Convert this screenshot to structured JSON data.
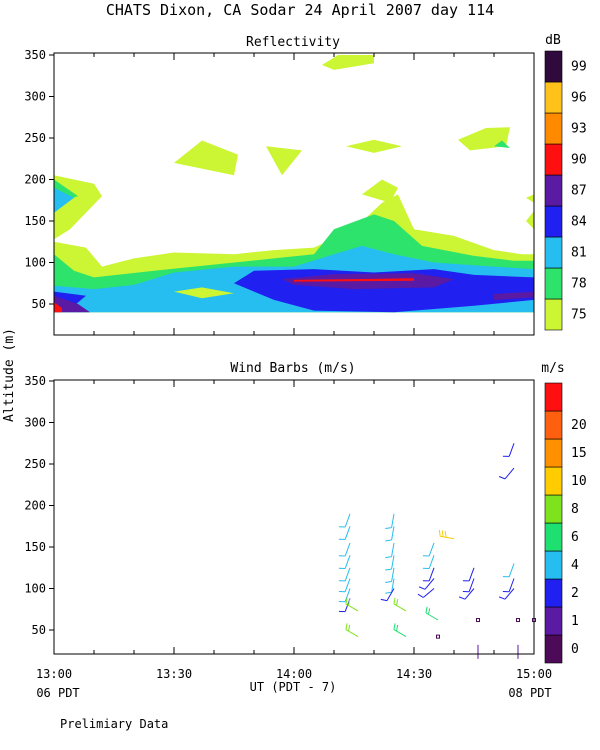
{
  "figure": {
    "title": "CHATS Dixon, CA  Sodar  24 April 2007  day 114",
    "shared_ylabel": "Altitude (m)",
    "xlabel": "UT  (PDT - 7)",
    "x_left_note": "06 PDT",
    "x_right_note": "08 PDT",
    "footer": "Prelimiary Data"
  },
  "chart_data": [
    {
      "type": "heatmap",
      "title": "Reflectivity",
      "colorbar_label": "dB",
      "xlim": [
        "13:00",
        "15:00"
      ],
      "ylim": [
        25,
        350
      ],
      "yticks": [
        50,
        100,
        150,
        200,
        250,
        300,
        350
      ],
      "xticks": [
        "13:00",
        "13:30",
        "14:00",
        "14:30",
        "15:00"
      ],
      "grid": false,
      "levels": [
        75,
        78,
        81,
        84,
        87,
        90,
        93,
        96,
        99
      ],
      "level_colors": [
        "#ccf533",
        "#2ee36b",
        "#26bdf0",
        "#2020f0",
        "#5a1aa3",
        "#ff1010",
        "#ff8a00",
        "#ffc21a",
        "#300a3d"
      ],
      "contour_regions": [
        {
          "level": 75,
          "points": [
            [
              "13:00",
              40
            ],
            [
              "13:00",
              205
            ],
            [
              "13:10",
              195
            ],
            [
              "13:12",
              180
            ],
            [
              "13:04",
              140
            ],
            [
              "13:00",
              128
            ],
            [
              "13:00",
              125
            ],
            [
              "13:08",
              118
            ],
            [
              "13:12",
              95
            ],
            [
              "13:20",
              105
            ],
            [
              "13:30",
              112
            ],
            [
              "13:45",
              110
            ],
            [
              "13:55",
              115
            ],
            [
              "14:05",
              118
            ],
            [
              "14:15",
              140
            ],
            [
              "14:22",
              172
            ],
            [
              "14:26",
              182
            ],
            [
              "14:30",
              140
            ],
            [
              "14:40",
              132
            ],
            [
              "14:50",
              115
            ],
            [
              "14:57",
              110
            ],
            [
              "15:00",
              110
            ],
            [
              "15:00",
              40
            ]
          ]
        },
        {
          "level": 75,
          "points": [
            [
              "13:57",
              205
            ],
            [
              "13:53",
              240
            ],
            [
              "14:02",
              235
            ]
          ]
        },
        {
          "level": 75,
          "points": [
            [
              "13:30",
              220
            ],
            [
              "13:37",
              247
            ],
            [
              "13:46",
              230
            ],
            [
              "13:45",
              205
            ]
          ]
        },
        {
          "level": 75,
          "points": [
            [
              "14:13",
              240
            ],
            [
              "14:20",
              248
            ],
            [
              "14:27",
              240
            ],
            [
              "14:20",
              232
            ]
          ]
        },
        {
          "level": 75,
          "points": [
            [
              "14:07",
              338
            ],
            [
              "14:11",
              350
            ],
            [
              "14:20",
              350
            ],
            [
              "14:20",
              340
            ],
            [
              "14:10",
              332
            ]
          ]
        },
        {
          "level": 75,
          "points": [
            [
              "14:41",
              248
            ],
            [
              "14:48",
              262
            ],
            [
              "14:54",
              263
            ],
            [
              "14:53",
              240
            ],
            [
              "14:44",
              235
            ]
          ]
        },
        {
          "level": 75,
          "points": [
            [
              "14:17",
              182
            ],
            [
              "14:22",
              200
            ],
            [
              "14:26",
              190
            ],
            [
              "14:24",
              172
            ]
          ]
        },
        {
          "level": 75,
          "points": [
            [
              "14:58",
              178
            ],
            [
              "15:00",
              182
            ],
            [
              "15:00",
              172
            ]
          ]
        },
        {
          "level": 75,
          "points": [
            [
              "14:58",
              150
            ],
            [
              "15:00",
              162
            ],
            [
              "15:00",
              140
            ]
          ]
        },
        {
          "level": 78,
          "points": [
            [
              "13:00",
              40
            ],
            [
              "13:00",
              110
            ],
            [
              "13:05",
              90
            ],
            [
              "13:10",
              82
            ],
            [
              "13:25",
              90
            ],
            [
              "13:35",
              95
            ],
            [
              "13:55",
              105
            ],
            [
              "14:05",
              110
            ],
            [
              "14:10",
              140
            ],
            [
              "14:20",
              158
            ],
            [
              "14:25",
              150
            ],
            [
              "14:32",
              120
            ],
            [
              "14:45",
              108
            ],
            [
              "14:55",
              102
            ],
            [
              "15:00",
              102
            ],
            [
              "15:00",
              40
            ]
          ]
        },
        {
          "level": 78,
          "points": [
            [
              "13:00",
              170
            ],
            [
              "13:00",
              200
            ],
            [
              "13:06",
              180
            ]
          ]
        },
        {
          "level": 78,
          "points": [
            [
              "14:50",
              240
            ],
            [
              "14:52",
              247
            ],
            [
              "14:54",
              238
            ]
          ]
        },
        {
          "level": 81,
          "points": [
            [
              "13:00",
              40
            ],
            [
              "13:00",
              72
            ],
            [
              "13:10",
              68
            ],
            [
              "13:20",
              73
            ],
            [
              "13:30",
              88
            ],
            [
              "13:45",
              95
            ],
            [
              "14:00",
              95
            ],
            [
              "14:10",
              110
            ],
            [
              "14:17",
              120
            ],
            [
              "14:25",
              110
            ],
            [
              "14:35",
              100
            ],
            [
              "14:50",
              95
            ],
            [
              "15:00",
              92
            ],
            [
              "15:00",
              40
            ]
          ]
        },
        {
          "level": 81,
          "points": [
            [
              "13:00",
              160
            ],
            [
              "13:00",
              190
            ],
            [
              "13:05",
              178
            ]
          ]
        },
        {
          "level": 84,
          "points": [
            [
              "13:00",
              45
            ],
            [
              "13:00",
              65
            ],
            [
              "13:08",
              60
            ],
            [
              "13:05",
              48
            ]
          ]
        },
        {
          "level": 84,
          "points": [
            [
              "13:45",
              75
            ],
            [
              "13:50",
              90
            ],
            [
              "14:05",
              92
            ],
            [
              "14:20",
              88
            ],
            [
              "14:35",
              92
            ],
            [
              "14:45",
              85
            ],
            [
              "15:00",
              82
            ],
            [
              "15:00",
              55
            ],
            [
              "14:45",
              48
            ],
            [
              "14:25",
              40
            ],
            [
              "14:05",
              42
            ],
            [
              "13:55",
              55
            ]
          ]
        },
        {
          "level": 87,
          "points": [
            [
              "13:00",
              40
            ],
            [
              "13:00",
              60
            ],
            [
              "13:06",
              50
            ],
            [
              "13:09",
              40
            ]
          ]
        },
        {
          "level": 87,
          "points": [
            [
              "13:57",
              80
            ],
            [
              "14:10",
              86
            ],
            [
              "14:30",
              87
            ],
            [
              "14:40",
              80
            ],
            [
              "14:35",
              70
            ],
            [
              "14:15",
              68
            ],
            [
              "14:00",
              73
            ]
          ]
        },
        {
          "level": 87,
          "points": [
            [
              "14:50",
              55
            ],
            [
              "15:00",
              58
            ],
            [
              "15:00",
              65
            ],
            [
              "14:50",
              62
            ]
          ]
        },
        {
          "level": 90,
          "points": [
            [
              "13:00",
              40
            ],
            [
              "13:00",
              52
            ],
            [
              "13:02",
              45
            ],
            [
              "13:02",
              40
            ]
          ]
        },
        {
          "level": 90,
          "points": [
            [
              "14:00",
              79
            ],
            [
              "14:30",
              81
            ],
            [
              "14:30",
              78
            ],
            [
              "14:00",
              77
            ]
          ]
        }
      ],
      "inner_patches": [
        {
          "level": 75,
          "points": [
            [
              "13:30",
              65
            ],
            [
              "13:37",
              70
            ],
            [
              "13:45",
              63
            ],
            [
              "13:37",
              57
            ]
          ]
        }
      ]
    },
    {
      "type": "scatter",
      "title": "Wind Barbs (m/s)",
      "colorbar_label": "m/s",
      "xlim": [
        "13:00",
        "15:00"
      ],
      "ylim": [
        20,
        350
      ],
      "yticks": [
        50,
        100,
        150,
        200,
        250,
        300,
        350
      ],
      "xticks": [
        "13:00",
        "13:30",
        "14:00",
        "14:30",
        "15:00"
      ],
      "grid": false,
      "levels": [
        0,
        1,
        2,
        4,
        6,
        8,
        10,
        15,
        20
      ],
      "level_colors": [
        "#4d0a59",
        "#5a1aa3",
        "#2020f0",
        "#26bdf0",
        "#1de070",
        "#7ee31c",
        "#ffcc00",
        "#ff9000",
        "#ff6010",
        "#ff1010"
      ],
      "barbs": [
        {
          "time": "14:14",
          "alt": 190,
          "speed": 4,
          "dir": 200
        },
        {
          "time": "14:14",
          "alt": 175,
          "speed": 4,
          "dir": 200
        },
        {
          "time": "14:14",
          "alt": 155,
          "speed": 5,
          "dir": 200
        },
        {
          "time": "14:14",
          "alt": 140,
          "speed": 5,
          "dir": 200
        },
        {
          "time": "14:14",
          "alt": 125,
          "speed": 5,
          "dir": 200
        },
        {
          "time": "14:14",
          "alt": 112,
          "speed": 5,
          "dir": 200
        },
        {
          "time": "14:14",
          "alt": 100,
          "speed": 4,
          "dir": 200
        },
        {
          "time": "14:14",
          "alt": 88,
          "speed": 3,
          "dir": 200
        },
        {
          "time": "14:16",
          "alt": 73,
          "speed": 8,
          "dir": 300
        },
        {
          "time": "14:16",
          "alt": 42,
          "speed": 8,
          "dir": 300
        },
        {
          "time": "14:25",
          "alt": 190,
          "speed": 4,
          "dir": 190
        },
        {
          "time": "14:25",
          "alt": 175,
          "speed": 4,
          "dir": 190
        },
        {
          "time": "14:25",
          "alt": 155,
          "speed": 5,
          "dir": 190
        },
        {
          "time": "14:25",
          "alt": 140,
          "speed": 5,
          "dir": 190
        },
        {
          "time": "14:25",
          "alt": 125,
          "speed": 4,
          "dir": 190
        },
        {
          "time": "14:25",
          "alt": 112,
          "speed": 4,
          "dir": 190
        },
        {
          "time": "14:25",
          "alt": 100,
          "speed": 2,
          "dir": 210
        },
        {
          "time": "14:28",
          "alt": 73,
          "speed": 8,
          "dir": 300
        },
        {
          "time": "14:28",
          "alt": 42,
          "speed": 6,
          "dir": 300
        },
        {
          "time": "14:35",
          "alt": 155,
          "speed": 4,
          "dir": 200
        },
        {
          "time": "14:35",
          "alt": 140,
          "speed": 4,
          "dir": 200
        },
        {
          "time": "14:35",
          "alt": 125,
          "speed": 3,
          "dir": 200
        },
        {
          "time": "14:35",
          "alt": 112,
          "speed": 2,
          "dir": 220
        },
        {
          "time": "14:35",
          "alt": 100,
          "speed": 2,
          "dir": 230
        },
        {
          "time": "14:36",
          "alt": 62,
          "speed": 6,
          "dir": 300
        },
        {
          "time": "14:36",
          "alt": 42,
          "speed": 0.5,
          "dir": 0
        },
        {
          "time": "14:40",
          "alt": 160,
          "speed": 12,
          "dir": 280
        },
        {
          "time": "14:45",
          "alt": 125,
          "speed": 3,
          "dir": 200
        },
        {
          "time": "14:45",
          "alt": 112,
          "speed": 3,
          "dir": 200
        },
        {
          "time": "14:45",
          "alt": 100,
          "speed": 2,
          "dir": 220
        },
        {
          "time": "14:46",
          "alt": 62,
          "speed": 0.5,
          "dir": 0
        },
        {
          "time": "14:46",
          "alt": 32,
          "speed": 1,
          "dir": 180
        },
        {
          "time": "14:55",
          "alt": 275,
          "speed": 2,
          "dir": 200
        },
        {
          "time": "14:55",
          "alt": 245,
          "speed": 2,
          "dir": 220
        },
        {
          "time": "14:55",
          "alt": 130,
          "speed": 4,
          "dir": 200
        },
        {
          "time": "14:55",
          "alt": 112,
          "speed": 3,
          "dir": 200
        },
        {
          "time": "14:55",
          "alt": 100,
          "speed": 2,
          "dir": 220
        },
        {
          "time": "14:56",
          "alt": 62,
          "speed": 0.5,
          "dir": 0
        },
        {
          "time": "14:56",
          "alt": 32,
          "speed": 1,
          "dir": 180
        },
        {
          "time": "15:00",
          "alt": 62,
          "speed": 0.5,
          "dir": 0
        }
      ]
    }
  ]
}
